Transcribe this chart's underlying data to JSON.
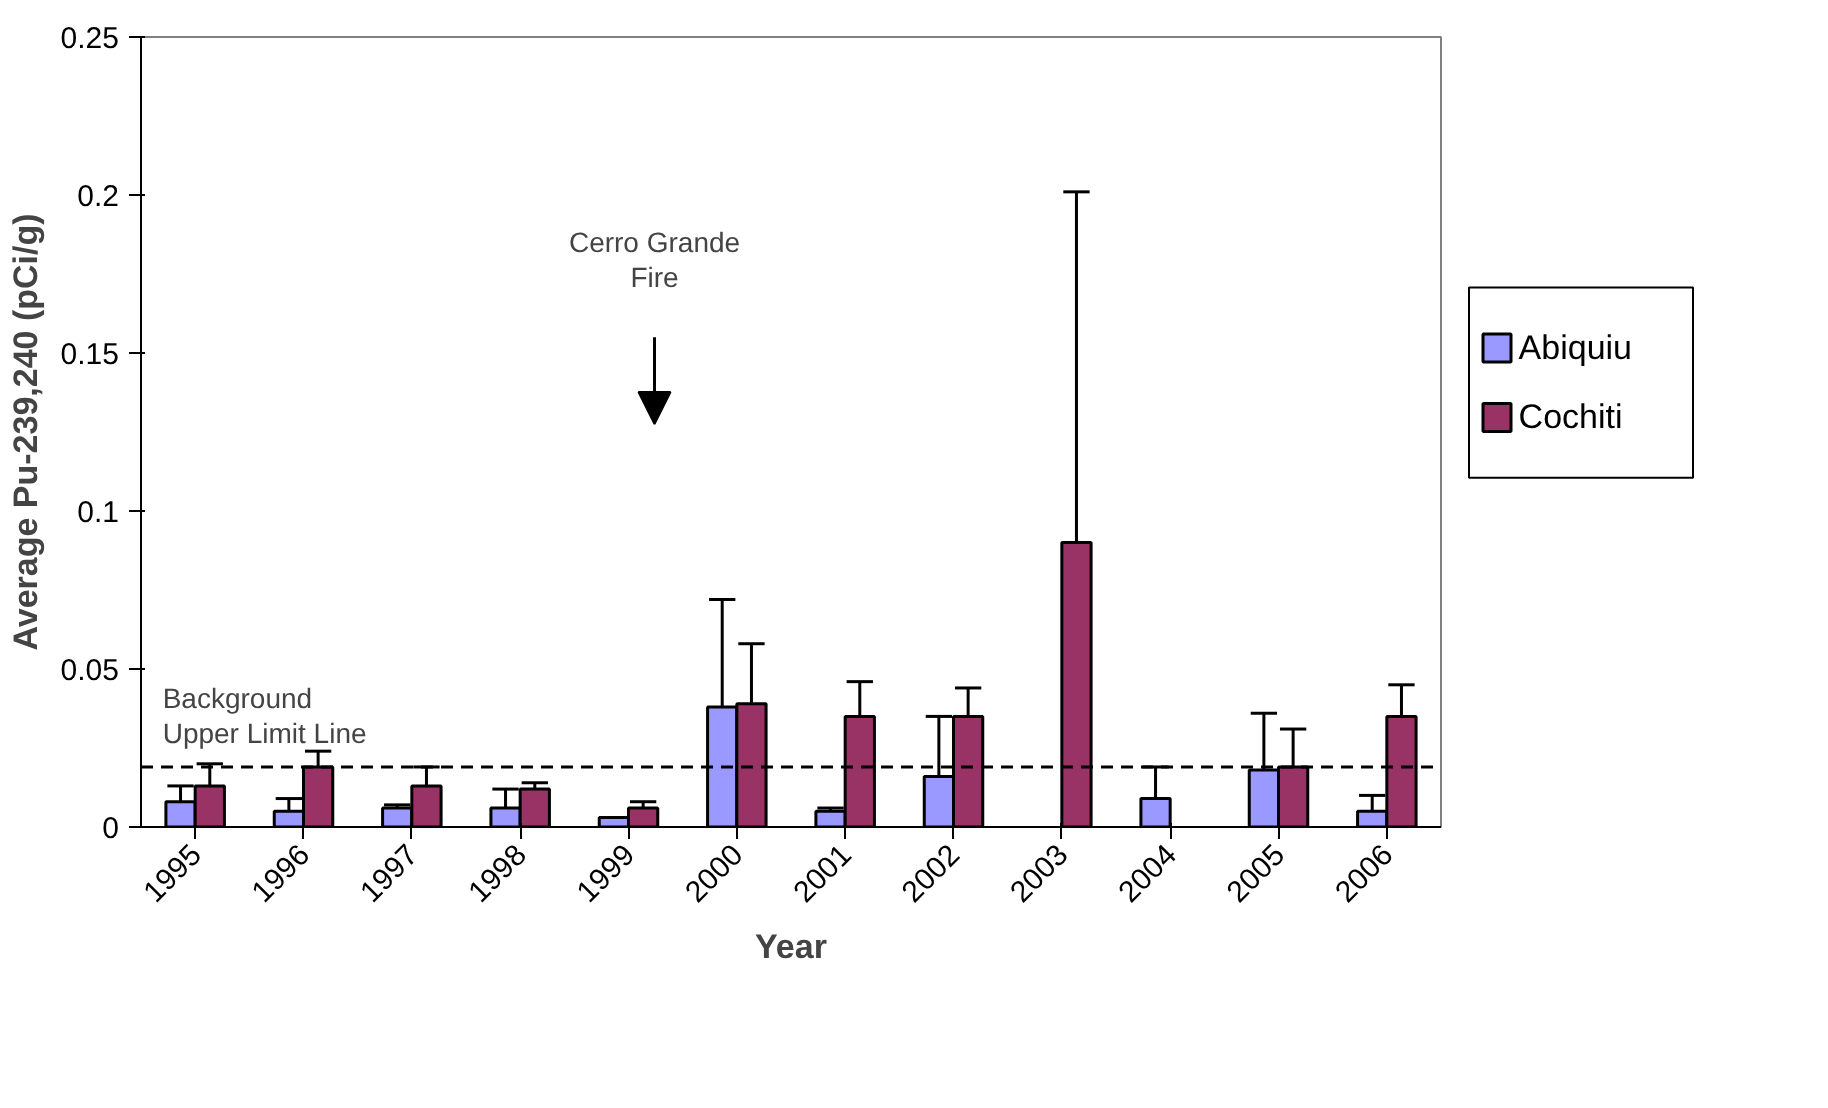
{
  "chart_data": {
    "type": "bar",
    "xlabel": "Year",
    "ylabel": "Average Pu-239,240 (pCi/g)",
    "categories": [
      "1995",
      "1996",
      "1997",
      "1998",
      "1999",
      "2000",
      "2001",
      "2002",
      "2003",
      "2004",
      "2005",
      "2006"
    ],
    "series": [
      {
        "name": "Abiquiu",
        "color": "#9999ff",
        "values": [
          0.008,
          0.005,
          0.006,
          0.006,
          0.003,
          0.038,
          0.005,
          0.016,
          null,
          0.009,
          0.018,
          0.005
        ],
        "errors": [
          [
            0.008,
            0.013
          ],
          [
            0.005,
            0.009
          ],
          [
            0.006,
            0.007
          ],
          [
            0.006,
            0.012
          ],
          null,
          [
            0.038,
            0.072
          ],
          [
            0.005,
            0.006
          ],
          [
            0.016,
            0.035
          ],
          null,
          [
            0.009,
            0.019
          ],
          [
            0.018,
            0.036
          ],
          [
            0.005,
            0.01
          ]
        ]
      },
      {
        "name": "Cochiti",
        "color": "#993366",
        "values": [
          0.013,
          0.019,
          0.013,
          0.012,
          0.006,
          0.039,
          0.035,
          0.035,
          0.09,
          null,
          0.019,
          0.035
        ],
        "errors": [
          [
            0.013,
            0.02
          ],
          [
            0.019,
            0.024
          ],
          [
            0.013,
            0.019
          ],
          [
            0.012,
            0.014
          ],
          [
            0.006,
            0.008
          ],
          [
            0.039,
            0.058
          ],
          [
            0.035,
            0.046
          ],
          [
            0.035,
            0.044
          ],
          [
            0.09,
            0.201
          ],
          null,
          [
            0.019,
            0.031
          ],
          [
            0.035,
            0.045
          ]
        ]
      }
    ],
    "ylim": [
      0,
      0.25
    ],
    "yticks": [
      0,
      0.05,
      0.1,
      0.15,
      0.2,
      0.25
    ],
    "grid": false,
    "legend": "right",
    "ref_lines": [
      {
        "axis": "y",
        "value": 0.019,
        "label": "Background\nUpper Limit Line",
        "color": "#000000",
        "line_style": "dashed"
      }
    ],
    "annotations": [
      "Cerro Grande\nFire"
    ]
  }
}
